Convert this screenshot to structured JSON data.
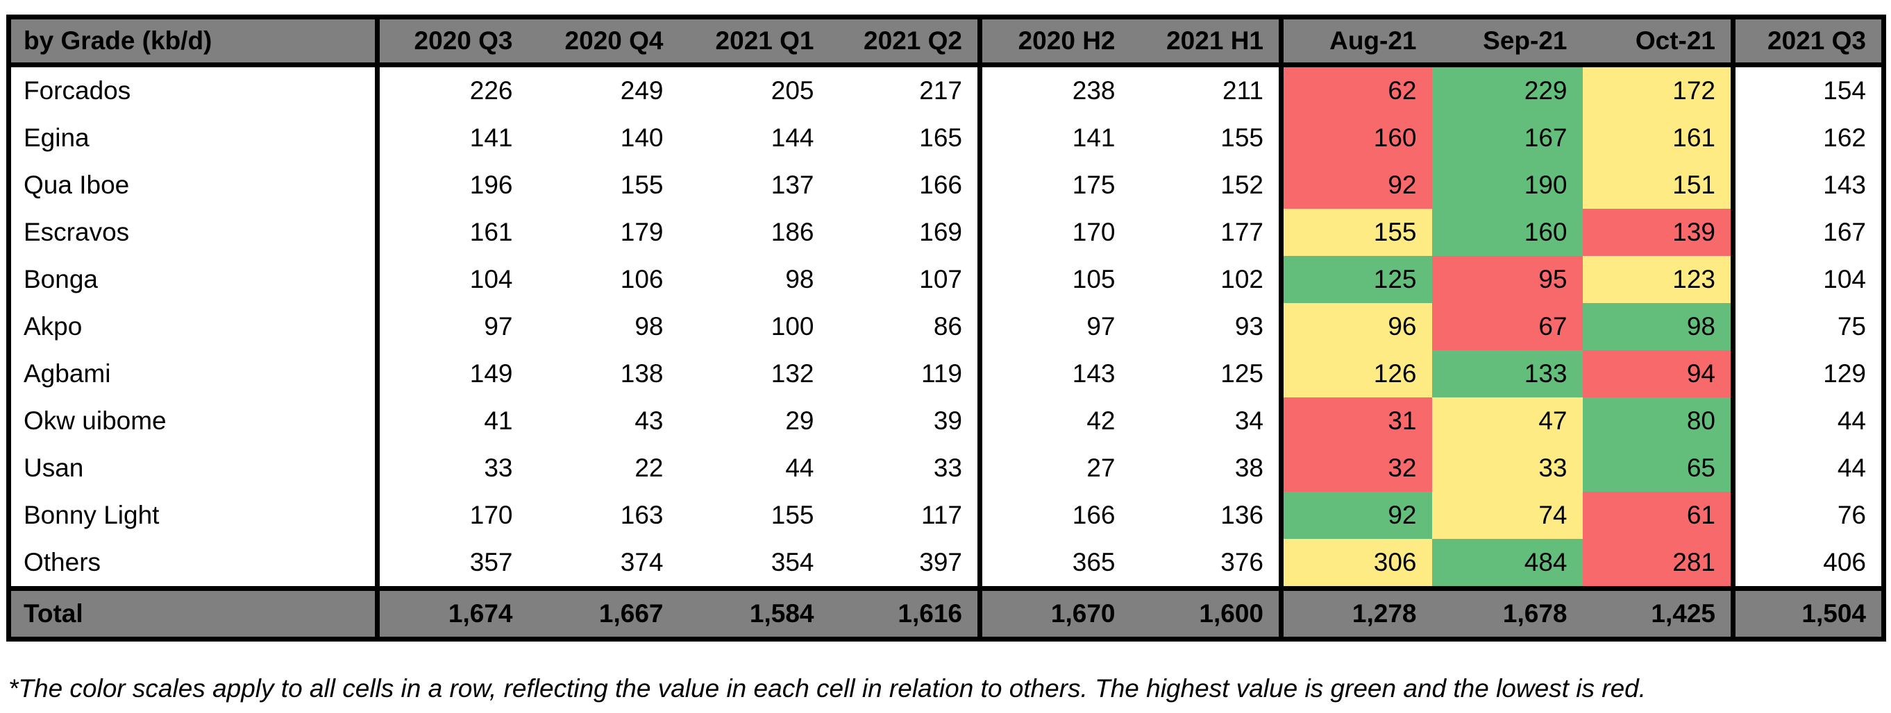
{
  "table": {
    "header": [
      "by Grade (kb/d)",
      "2020 Q3",
      "2020 Q4",
      "2021 Q1",
      "2021 Q2",
      "2020 H2",
      "2021 H1",
      "Aug-21",
      "Sep-21",
      "Oct-21",
      "2021 Q3"
    ],
    "rows": [
      [
        "Forcados",
        226,
        249,
        205,
        217,
        238,
        211,
        62,
        229,
        172,
        154
      ],
      [
        "Egina",
        141,
        140,
        144,
        165,
        141,
        155,
        160,
        167,
        161,
        162
      ],
      [
        "Qua Iboe",
        196,
        155,
        137,
        166,
        175,
        152,
        92,
        190,
        151,
        143
      ],
      [
        "Escravos",
        161,
        179,
        186,
        169,
        170,
        177,
        155,
        160,
        139,
        167
      ],
      [
        "Bonga",
        104,
        106,
        98,
        107,
        105,
        102,
        125,
        95,
        123,
        104
      ],
      [
        "Akpo",
        97,
        98,
        100,
        86,
        97,
        93,
        96,
        67,
        98,
        75
      ],
      [
        "Agbami",
        149,
        138,
        132,
        119,
        143,
        125,
        126,
        133,
        94,
        129
      ],
      [
        "Okw uibome",
        41,
        43,
        29,
        39,
        42,
        34,
        31,
        47,
        80,
        44
      ],
      [
        "Usan",
        33,
        22,
        44,
        33,
        27,
        38,
        32,
        33,
        65,
        44
      ],
      [
        "Bonny Light",
        170,
        163,
        155,
        117,
        166,
        136,
        92,
        74,
        61,
        76
      ],
      [
        "Others",
        357,
        374,
        354,
        397,
        365,
        376,
        306,
        484,
        281,
        406
      ]
    ],
    "total": [
      "Total",
      "1,674",
      "1,667",
      "1,584",
      "1,616",
      "1,670",
      "1,600",
      "1,278",
      "1,678",
      "1,425",
      "1,504"
    ]
  },
  "footnote": "*The color scales apply to all cells in a row, reflecting the value in each cell in relation to others. The highest value is green and the lowest is red."
}
